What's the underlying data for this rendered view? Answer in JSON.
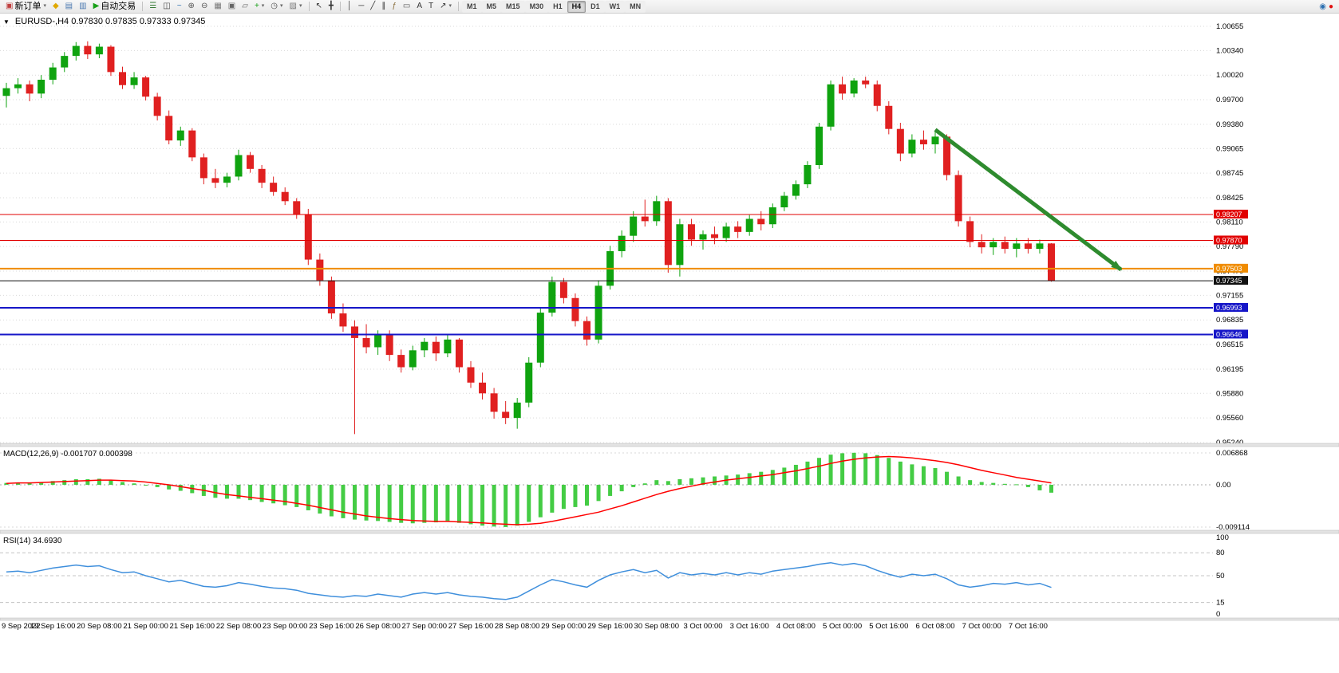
{
  "toolbar": {
    "groups": [
      {
        "name": "trade-group",
        "items": [
          {
            "name": "new-order-button",
            "glyph": "▣",
            "glyph_color": "#c04040",
            "label": "新订单",
            "caret": true
          },
          {
            "name": "market-watch-button",
            "glyph": "◆",
            "glyph_color": "#e0a800"
          },
          {
            "name": "data-window-button",
            "glyph": "▤",
            "glyph_color": "#4a78b0"
          },
          {
            "name": "navigator-button",
            "glyph": "▥",
            "glyph_color": "#4a78b0"
          },
          {
            "name": "autotrading-button",
            "glyph": "▶",
            "glyph_color": "#18a018",
            "label": "自动交易"
          }
        ]
      },
      {
        "name": "chart-tools-group",
        "items": [
          {
            "name": "bar-chart-button",
            "glyph": "☰",
            "glyph_color": "#357a35"
          },
          {
            "name": "candlestick-chart-button",
            "glyph": "◫",
            "glyph_color": "#444444"
          },
          {
            "name": "line-chart-button",
            "glyph": "~",
            "glyph_color": "#2b6fb0"
          },
          {
            "name": "zoom-in-button",
            "glyph": "⊕",
            "glyph_color": "#555555"
          },
          {
            "name": "zoom-out-button",
            "glyph": "⊖",
            "glyph_color": "#555555"
          },
          {
            "name": "grid-button",
            "glyph": "▦",
            "glyph_color": "#777777"
          },
          {
            "name": "tile-windows-button",
            "glyph": "▣",
            "glyph_color": "#666666"
          },
          {
            "name": "cascade-windows-button",
            "glyph": "▱",
            "glyph_color": "#666666"
          },
          {
            "name": "indicators-button",
            "glyph": "+",
            "glyph_color": "#18a018",
            "caret": true
          },
          {
            "name": "periods-button",
            "glyph": "◷",
            "glyph_color": "#555555",
            "caret": true
          },
          {
            "name": "templates-button",
            "glyph": "▨",
            "glyph_color": "#777777",
            "caret": true
          }
        ]
      },
      {
        "name": "cursor-group",
        "items": [
          {
            "name": "cursor-button",
            "glyph": "↖",
            "glyph_color": "#333333"
          },
          {
            "name": "crosshair-button",
            "glyph": "╋",
            "glyph_color": "#333333"
          }
        ]
      },
      {
        "name": "draw-group",
        "items": [
          {
            "name": "vertical-line-button",
            "glyph": "│",
            "glyph_color": "#333333"
          },
          {
            "name": "horizontal-line-button",
            "glyph": "─",
            "glyph_color": "#333333"
          },
          {
            "name": "trendline-button",
            "glyph": "╱",
            "glyph_color": "#333333"
          },
          {
            "name": "equidistant-channel-button",
            "glyph": "∥",
            "glyph_color": "#333333"
          },
          {
            "name": "fibonacci-button",
            "glyph": "ƒ",
            "glyph_color": "#8a6d3b"
          },
          {
            "name": "shapes-button",
            "glyph": "▭",
            "glyph_color": "#555555"
          },
          {
            "name": "text-button",
            "glyph": "A",
            "glyph_color": "#333333"
          },
          {
            "name": "label-button",
            "glyph": "T",
            "glyph_color": "#333333"
          },
          {
            "name": "arrows-button",
            "glyph": "↗",
            "glyph_color": "#333333",
            "caret": true
          }
        ]
      }
    ],
    "timeframes": {
      "labels": [
        "M1",
        "M5",
        "M15",
        "M30",
        "H1",
        "H4",
        "D1",
        "W1",
        "MN"
      ],
      "active": "H4"
    },
    "right_icons": [
      {
        "name": "community-icon",
        "glyph": "◉",
        "glyph_color": "#2b6fb0"
      },
      {
        "name": "record-icon",
        "glyph": "●",
        "glyph_color": "#e01010"
      }
    ]
  },
  "chart": {
    "marker": "▼",
    "title": "EURUSD-,H4  0.97830 0.97835 0.97333 0.97345",
    "symbol": "EURUSD-",
    "period": "H4",
    "ohlc": {
      "open": "0.97830",
      "high": "0.97835",
      "low": "0.97333",
      "close": "0.97345"
    }
  },
  "colors": {
    "candle_up": "#0fa30f",
    "candle_down": "#e02020",
    "grid": "#d9d9d9",
    "macd_histogram": "#44cc44",
    "macd_signal": "#ff0000",
    "rsi_line": "#3f8fdc",
    "arrow": "#2e8b2e",
    "hline_red": "#e10000",
    "hline_orange": "#f08c00",
    "hline_blue": "#1616c8",
    "current_price": "#111111",
    "separator": "#e3e3e3",
    "axis_text": "#000000"
  },
  "chart_data": {
    "type": "candlestick",
    "symbol": "EURUSD-",
    "timeframe": "H4",
    "price_axis_ticks": [
      "1.00655",
      "1.00340",
      "1.00020",
      "0.99700",
      "0.99380",
      "0.99065",
      "0.98745",
      "0.98425",
      "0.98110",
      "0.97790",
      "0.97470",
      "0.97155",
      "0.96835",
      "0.96515",
      "0.96195",
      "0.95880",
      "0.95560",
      "0.95240"
    ],
    "hlines": [
      {
        "name": "resistance-line-1",
        "price": 0.98207,
        "label": "0.98207",
        "color": "#e10000",
        "width": 1
      },
      {
        "name": "resistance-line-2",
        "price": 0.9787,
        "label": "0.97870",
        "color": "#e10000",
        "width": 1
      },
      {
        "name": "support-line-orange",
        "price": 0.97503,
        "label": "0.97503",
        "color": "#f08c00",
        "width": 2
      },
      {
        "name": "current-price-line",
        "price": 0.97345,
        "label": "0.97345",
        "color": "#111111",
        "width": 1
      },
      {
        "name": "support-line-blue-1",
        "price": 0.96993,
        "label": "0.96993",
        "color": "#1616c8",
        "width": 2
      },
      {
        "name": "support-line-blue-2",
        "price": 0.96646,
        "label": "0.96646",
        "color": "#1616c8",
        "width": 2
      }
    ],
    "trend_arrow": {
      "from": {
        "index": 80,
        "price": 0.9931
      },
      "to": {
        "index": 96,
        "price": 0.9749
      },
      "color": "#2e8b2e"
    },
    "candles": [
      [
        0.9975,
        0.9992,
        0.996,
        0.9985
      ],
      [
        0.9985,
        0.9998,
        0.9978,
        0.999
      ],
      [
        0.999,
        0.9995,
        0.9968,
        0.9978
      ],
      [
        0.9978,
        1.0002,
        0.9972,
        0.9996
      ],
      [
        0.9996,
        1.0018,
        0.999,
        1.0012
      ],
      [
        1.0012,
        1.0032,
        1.0006,
        1.0027
      ],
      [
        1.0027,
        1.0045,
        1.0021,
        1.004
      ],
      [
        1.004,
        1.0046,
        1.0023,
        1.0029
      ],
      [
        1.0029,
        1.0043,
        1.0024,
        1.0039
      ],
      [
        1.0039,
        1.0041,
        1.0001,
        1.0006
      ],
      [
        1.0006,
        1.0013,
        0.9984,
        0.9989
      ],
      [
        0.9989,
        1.0006,
        0.9984,
        0.9999
      ],
      [
        0.9999,
        1.0001,
        0.9969,
        0.9974
      ],
      [
        0.9974,
        0.9979,
        0.9943,
        0.9949
      ],
      [
        0.9949,
        0.9956,
        0.9912,
        0.9917
      ],
      [
        0.9917,
        0.9935,
        0.991,
        0.993
      ],
      [
        0.993,
        0.9933,
        0.989,
        0.9895
      ],
      [
        0.9895,
        0.99,
        0.986,
        0.9868
      ],
      [
        0.9868,
        0.988,
        0.9855,
        0.9862
      ],
      [
        0.9862,
        0.9875,
        0.9856,
        0.987
      ],
      [
        0.987,
        0.9905,
        0.9865,
        0.9898
      ],
      [
        0.9898,
        0.9902,
        0.9875,
        0.988
      ],
      [
        0.988,
        0.9885,
        0.9855,
        0.9862
      ],
      [
        0.9862,
        0.987,
        0.9845,
        0.985
      ],
      [
        0.985,
        0.9856,
        0.9833,
        0.9838
      ],
      [
        0.9838,
        0.9842,
        0.9815,
        0.9821
      ],
      [
        0.9821,
        0.9828,
        0.9755,
        0.9762
      ],
      [
        0.9762,
        0.977,
        0.9728,
        0.9735
      ],
      [
        0.9735,
        0.974,
        0.9685,
        0.9692
      ],
      [
        0.9692,
        0.9705,
        0.9668,
        0.9675
      ],
      [
        0.9675,
        0.9683,
        0.9535,
        0.966
      ],
      [
        0.966,
        0.9678,
        0.964,
        0.9648
      ],
      [
        0.9648,
        0.967,
        0.9638,
        0.9665
      ],
      [
        0.9665,
        0.967,
        0.963,
        0.9638
      ],
      [
        0.9638,
        0.9645,
        0.9615,
        0.9622
      ],
      [
        0.9622,
        0.965,
        0.9618,
        0.9644
      ],
      [
        0.9644,
        0.966,
        0.9635,
        0.9655
      ],
      [
        0.9655,
        0.9662,
        0.963,
        0.964
      ],
      [
        0.964,
        0.9665,
        0.9635,
        0.9658
      ],
      [
        0.9658,
        0.966,
        0.9615,
        0.9622
      ],
      [
        0.9622,
        0.963,
        0.9595,
        0.9602
      ],
      [
        0.9602,
        0.9615,
        0.958,
        0.9588
      ],
      [
        0.9588,
        0.9595,
        0.9555,
        0.9564
      ],
      [
        0.9564,
        0.9578,
        0.9548,
        0.9556
      ],
      [
        0.9556,
        0.9582,
        0.9542,
        0.9576
      ],
      [
        0.9576,
        0.9635,
        0.957,
        0.9628
      ],
      [
        0.9628,
        0.97,
        0.9622,
        0.9693
      ],
      [
        0.9693,
        0.974,
        0.9688,
        0.9733
      ],
      [
        0.9733,
        0.9738,
        0.9705,
        0.9712
      ],
      [
        0.9712,
        0.9718,
        0.9675,
        0.9682
      ],
      [
        0.9682,
        0.9688,
        0.965,
        0.9658
      ],
      [
        0.9658,
        0.9735,
        0.9653,
        0.9728
      ],
      [
        0.9728,
        0.978,
        0.9723,
        0.9773
      ],
      [
        0.9773,
        0.98,
        0.9765,
        0.9793
      ],
      [
        0.9793,
        0.9825,
        0.9785,
        0.9818
      ],
      [
        0.9818,
        0.984,
        0.9805,
        0.9812
      ],
      [
        0.9812,
        0.9845,
        0.9806,
        0.9838
      ],
      [
        0.9838,
        0.9842,
        0.9745,
        0.9755
      ],
      [
        0.9755,
        0.9815,
        0.974,
        0.9808
      ],
      [
        0.9808,
        0.9815,
        0.978,
        0.9788
      ],
      [
        0.9788,
        0.98,
        0.9775,
        0.9795
      ],
      [
        0.9795,
        0.9805,
        0.9782,
        0.979
      ],
      [
        0.979,
        0.981,
        0.9785,
        0.9805
      ],
      [
        0.9805,
        0.9812,
        0.979,
        0.9798
      ],
      [
        0.9798,
        0.982,
        0.9793,
        0.9815
      ],
      [
        0.9815,
        0.9825,
        0.98,
        0.9808
      ],
      [
        0.9808,
        0.9835,
        0.9803,
        0.983
      ],
      [
        0.983,
        0.985,
        0.9825,
        0.9845
      ],
      [
        0.9845,
        0.9865,
        0.984,
        0.986
      ],
      [
        0.986,
        0.989,
        0.9855,
        0.9885
      ],
      [
        0.9885,
        0.994,
        0.988,
        0.9935
      ],
      [
        0.9935,
        0.9995,
        0.993,
        0.999
      ],
      [
        0.999,
        1.0,
        0.997,
        0.9978
      ],
      [
        0.9978,
        0.9998,
        0.9973,
        0.9995
      ],
      [
        0.9995,
        1.0,
        0.9985,
        0.999
      ],
      [
        0.999,
        0.9995,
        0.9955,
        0.9962
      ],
      [
        0.9962,
        0.9968,
        0.9925,
        0.9932
      ],
      [
        0.9932,
        0.994,
        0.989,
        0.99
      ],
      [
        0.99,
        0.9925,
        0.9895,
        0.9918
      ],
      [
        0.9918,
        0.993,
        0.9905,
        0.9912
      ],
      [
        0.9912,
        0.9928,
        0.99,
        0.9922
      ],
      [
        0.9922,
        0.9925,
        0.9865,
        0.9872
      ],
      [
        0.9872,
        0.9878,
        0.9805,
        0.9812
      ],
      [
        0.9812,
        0.9818,
        0.9778,
        0.9785
      ],
      [
        0.9785,
        0.9795,
        0.977,
        0.9778
      ],
      [
        0.9778,
        0.979,
        0.9768,
        0.9785
      ],
      [
        0.9785,
        0.9792,
        0.977,
        0.9776
      ],
      [
        0.9776,
        0.979,
        0.9765,
        0.9783
      ],
      [
        0.9783,
        0.979,
        0.977,
        0.9776
      ],
      [
        0.9776,
        0.9788,
        0.977,
        0.9783
      ],
      [
        0.9783,
        0.97835,
        0.97333,
        0.97345
      ]
    ],
    "macd": {
      "label": "MACD(12,26,9)",
      "main_value": "-0.001707",
      "signal_value": "0.000398",
      "display": "MACD(12,26,9) -0.001707 0.000398",
      "axis": [
        "0.006868",
        "0.00",
        "-0.009114"
      ],
      "histogram": [
        0.0004,
        0.0005,
        0.0005,
        0.0006,
        0.0008,
        0.001,
        0.0012,
        0.0012,
        0.0013,
        0.001,
        0.0006,
        0.0003,
        0.0,
        -0.0005,
        -0.001,
        -0.0013,
        -0.0018,
        -0.0024,
        -0.0028,
        -0.003,
        -0.003,
        -0.0033,
        -0.0037,
        -0.004,
        -0.0044,
        -0.0048,
        -0.0055,
        -0.0062,
        -0.0068,
        -0.0072,
        -0.0075,
        -0.0077,
        -0.0078,
        -0.008,
        -0.0082,
        -0.0083,
        -0.0082,
        -0.0081,
        -0.008,
        -0.0082,
        -0.0085,
        -0.0088,
        -0.009,
        -0.0091,
        -0.0088,
        -0.008,
        -0.007,
        -0.006,
        -0.0052,
        -0.0048,
        -0.0045,
        -0.0035,
        -0.0024,
        -0.0014,
        -0.0005,
        0.0003,
        0.001,
        0.0008,
        0.0012,
        0.0014,
        0.0016,
        0.0018,
        0.002,
        0.0022,
        0.0025,
        0.0028,
        0.0032,
        0.0037,
        0.0043,
        0.005,
        0.0058,
        0.0065,
        0.0068,
        0.0069,
        0.0068,
        0.0064,
        0.0058,
        0.005,
        0.0044,
        0.004,
        0.0036,
        0.0028,
        0.0018,
        0.001,
        0.0006,
        0.0004,
        0.0002,
        0.0001,
        -0.0005,
        -0.0012,
        -0.0017
      ],
      "signal": [
        0.0003,
        0.0004,
        0.0004,
        0.0005,
        0.0006,
        0.0007,
        0.0008,
        0.0009,
        0.001,
        0.001,
        0.0009,
        0.0008,
        0.0006,
        0.0003,
        0.0,
        -0.0004,
        -0.0008,
        -0.0012,
        -0.0017,
        -0.0021,
        -0.0024,
        -0.0027,
        -0.003,
        -0.0033,
        -0.0036,
        -0.004,
        -0.0044,
        -0.0049,
        -0.0054,
        -0.0059,
        -0.0063,
        -0.0067,
        -0.007,
        -0.0073,
        -0.0075,
        -0.0077,
        -0.0078,
        -0.0079,
        -0.0079,
        -0.008,
        -0.0081,
        -0.0082,
        -0.0084,
        -0.0085,
        -0.0086,
        -0.0085,
        -0.0083,
        -0.0079,
        -0.0074,
        -0.0069,
        -0.0064,
        -0.0059,
        -0.0052,
        -0.0045,
        -0.0037,
        -0.0029,
        -0.0021,
        -0.0014,
        -0.0008,
        -0.0003,
        0.0002,
        0.0006,
        0.001,
        0.0013,
        0.0016,
        0.0019,
        0.0022,
        0.0026,
        0.003,
        0.0035,
        0.004,
        0.0046,
        0.0051,
        0.0055,
        0.0058,
        0.006,
        0.0061,
        0.006,
        0.0058,
        0.0055,
        0.0052,
        0.0048,
        0.0043,
        0.0037,
        0.0031,
        0.0026,
        0.0021,
        0.0016,
        0.0012,
        0.0008,
        0.0004
      ]
    },
    "rsi": {
      "label": "RSI(14)",
      "value": "34.6930",
      "display": "RSI(14) 34.6930",
      "axis": [
        "100",
        "80",
        "50",
        "15",
        "0"
      ],
      "levels": [
        80,
        50,
        15
      ],
      "values": [
        55,
        56,
        54,
        57,
        60,
        62,
        64,
        62,
        63,
        58,
        54,
        55,
        50,
        46,
        42,
        44,
        40,
        36,
        35,
        37,
        41,
        39,
        36,
        34,
        33,
        31,
        27,
        25,
        23,
        22,
        24,
        23,
        26,
        24,
        22,
        26,
        28,
        26,
        28,
        25,
        23,
        22,
        20,
        19,
        22,
        30,
        38,
        45,
        42,
        38,
        35,
        44,
        51,
        55,
        58,
        54,
        57,
        47,
        54,
        51,
        53,
        51,
        54,
        51,
        54,
        52,
        56,
        58,
        60,
        62,
        65,
        67,
        64,
        66,
        63,
        57,
        52,
        48,
        52,
        50,
        52,
        46,
        38,
        35,
        37,
        40,
        39,
        41,
        38,
        40,
        34.69
      ]
    },
    "time_labels": [
      "9 Sep 2022",
      "19 Sep 16:00",
      "20 Sep 08:00",
      "21 Sep 00:00",
      "21 Sep 16:00",
      "22 Sep 08:00",
      "23 Sep 00:00",
      "23 Sep 16:00",
      "26 Sep 08:00",
      "27 Sep 00:00",
      "27 Sep 16:00",
      "28 Sep 08:00",
      "29 Sep 00:00",
      "29 Sep 16:00",
      "30 Sep 08:00",
      "3 Oct 00:00",
      "3 Oct 16:00",
      "4 Oct 08:00",
      "5 Oct 00:00",
      "5 Oct 16:00",
      "6 Oct 08:00",
      "7 Oct 00:00",
      "7 Oct 16:00"
    ]
  }
}
